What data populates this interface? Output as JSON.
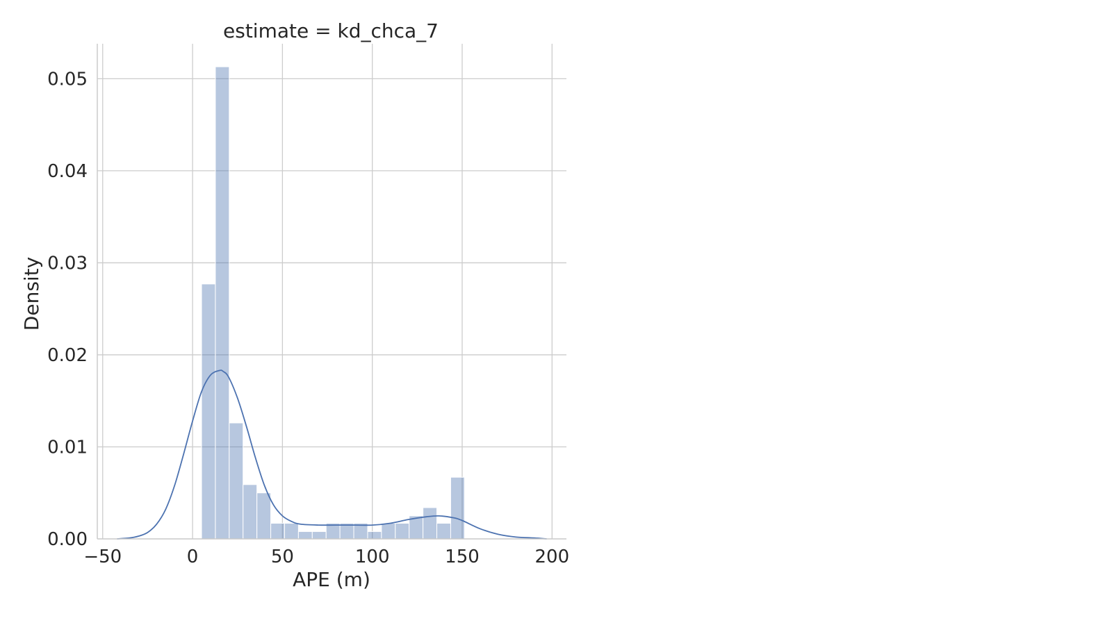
{
  "chart_data": {
    "type": "bar",
    "title": "estimate = kd_chca_7",
    "xlabel": "APE (m)",
    "ylabel": "Density",
    "xlim": [
      -53,
      208
    ],
    "ylim": [
      0,
      0.0538
    ],
    "xticks": [
      -50,
      0,
      50,
      100,
      150,
      200
    ],
    "xtick_labels": [
      "−50",
      "0",
      "50",
      "100",
      "150",
      "200"
    ],
    "yticks": [
      0.0,
      0.01,
      0.02,
      0.03,
      0.04,
      0.05
    ],
    "ytick_labels": [
      "0.00",
      "0.01",
      "0.02",
      "0.03",
      "0.04",
      "0.05"
    ],
    "grid": true,
    "bar_color": "#4c72b0",
    "kde_color": "#4c72b0",
    "histogram": {
      "bin_start": 5.0,
      "bin_width": 7.7,
      "values": [
        0.0277,
        0.0513,
        0.0126,
        0.0059,
        0.005,
        0.0017,
        0.0017,
        0.0008,
        0.0008,
        0.0017,
        0.0017,
        0.0017,
        0.0008,
        0.0017,
        0.0017,
        0.0025,
        0.0034,
        0.0017,
        0.0067
      ]
    },
    "kde": {
      "x": [
        -42,
        -35,
        -30,
        -25,
        -20,
        -15,
        -10,
        -5,
        0,
        5,
        10,
        15,
        17,
        20,
        25,
        30,
        35,
        40,
        45,
        50,
        55,
        60,
        70,
        80,
        90,
        100,
        110,
        120,
        130,
        137,
        145,
        150,
        160,
        170,
        180,
        190,
        197
      ],
      "y": [
        0.0,
        0.0001,
        0.0003,
        0.0007,
        0.0016,
        0.0032,
        0.0058,
        0.0092,
        0.0128,
        0.016,
        0.0178,
        0.0183,
        0.0182,
        0.0176,
        0.0153,
        0.0122,
        0.0088,
        0.0058,
        0.0037,
        0.0025,
        0.0019,
        0.0016,
        0.0015,
        0.0015,
        0.0015,
        0.0015,
        0.0017,
        0.0021,
        0.0024,
        0.0025,
        0.0023,
        0.002,
        0.0011,
        0.0005,
        0.0002,
        0.0001,
        0.0
      ]
    }
  }
}
